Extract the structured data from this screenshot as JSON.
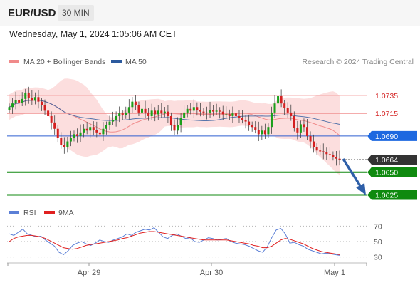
{
  "header": {
    "pair": "EUR/USD",
    "timeframe": "30 MIN"
  },
  "datetime": "Wednesday, May 1, 2024 1:05:06 AM CET",
  "legend": {
    "bollinger_label": "MA 20 + Bollinger Bands",
    "bollinger_color": "#f08a8a",
    "ma50_label": "MA 50",
    "ma50_color": "#2c5a9e",
    "copyright": "Research © 2024 Trading Central"
  },
  "rsi_legend": {
    "rsi_label": "RSI",
    "rsi_color": "#5b7fd6",
    "ma_label": "9MA",
    "ma_color": "#e02020"
  },
  "colors": {
    "up": "#1aa01a",
    "down": "#d42020",
    "support": "#118811",
    "pivot": "#2f5fd0",
    "resistance": "#f09090",
    "arrow": "#2e5fa8"
  },
  "chart_data": [
    {
      "type": "candlestick",
      "x_ticks": [
        "Apr 29",
        "Apr 30",
        "May 1"
      ],
      "ylim": [
        1.0612,
        1.076
      ],
      "levels": [
        {
          "value": 1.0735,
          "label": "1.0735",
          "kind": "resistance"
        },
        {
          "value": 1.0715,
          "label": "1.0715",
          "kind": "resistance"
        },
        {
          "value": 1.069,
          "label": "1.0690",
          "kind": "pivot"
        },
        {
          "value": 1.0664,
          "label": "1.0664",
          "kind": "last"
        },
        {
          "value": 1.065,
          "label": "1.0650",
          "kind": "support"
        },
        {
          "value": 1.0625,
          "label": "1.0625",
          "kind": "support"
        }
      ],
      "closes": [
        1.0722,
        1.0726,
        1.073,
        1.0727,
        1.0731,
        1.0738,
        1.0732,
        1.0729,
        1.0733,
        1.0728,
        1.0724,
        1.0718,
        1.0712,
        1.0705,
        1.0698,
        1.0688,
        1.068,
        1.0678,
        1.0684,
        1.0688,
        1.0692,
        1.069,
        1.0694,
        1.0698,
        1.0696,
        1.07,
        1.0697,
        1.0694,
        1.0692,
        1.0698,
        1.0702,
        1.0706,
        1.0708,
        1.0712,
        1.0715,
        1.0713,
        1.0716,
        1.0722,
        1.0728,
        1.0724,
        1.0716,
        1.072,
        1.0716,
        1.0712,
        1.0718,
        1.0714,
        1.0718,
        1.0715,
        1.0717,
        1.0712,
        1.0702,
        1.0696,
        1.0702,
        1.071,
        1.0716,
        1.072,
        1.0718,
        1.0722,
        1.0719,
        1.0717,
        1.0716,
        1.0716,
        1.0719,
        1.0717,
        1.0718,
        1.0717,
        1.0714,
        1.0714,
        1.0712,
        1.0715,
        1.0712,
        1.071,
        1.0708,
        1.0706,
        1.0702,
        1.07,
        1.0697,
        1.0692,
        1.0696,
        1.0692,
        1.07,
        1.0716,
        1.0726,
        1.0734,
        1.0726,
        1.0721,
        1.0716,
        1.0712,
        1.0699,
        1.0694,
        1.0703,
        1.07,
        1.069,
        1.0684,
        1.0678,
        1.0674,
        1.0673,
        1.0672,
        1.067,
        1.0669,
        1.0667,
        1.0665,
        1.0664
      ]
    },
    {
      "type": "line",
      "name": "RSI",
      "ylim": [
        25,
        75
      ],
      "ticks": [
        70,
        50,
        30
      ],
      "values": [
        60,
        58,
        62,
        66,
        60,
        58,
        56,
        57,
        52,
        48,
        44,
        36,
        33,
        38,
        45,
        48,
        50,
        47,
        45,
        48,
        52,
        50,
        49,
        52,
        54,
        56,
        60,
        58,
        62,
        64,
        66,
        65,
        68,
        62,
        56,
        54,
        58,
        60,
        57,
        54,
        55,
        50,
        49,
        52,
        55,
        54,
        52,
        53,
        54,
        50,
        48,
        47,
        46,
        44,
        41,
        38,
        36,
        43,
        55,
        65,
        67,
        60,
        48,
        49,
        46,
        44,
        40,
        38,
        36,
        34,
        35,
        34,
        33,
        32
      ],
      "ma_values": [
        50,
        54,
        56,
        57,
        58,
        58,
        57,
        56,
        54,
        51,
        48,
        45,
        42,
        41,
        40,
        41,
        43,
        45,
        46,
        47,
        48,
        49,
        50,
        51,
        52,
        54,
        55,
        57,
        59,
        61,
        62,
        63,
        63,
        62,
        61,
        60,
        59,
        58,
        57,
        56,
        55,
        54,
        53,
        52,
        52,
        52,
        52,
        52,
        52,
        51,
        50,
        49,
        48,
        47,
        45,
        44,
        42,
        42,
        44,
        48,
        52,
        54,
        53,
        51,
        49,
        47,
        44,
        41,
        39,
        37,
        36,
        35,
        34,
        33
      ]
    }
  ]
}
